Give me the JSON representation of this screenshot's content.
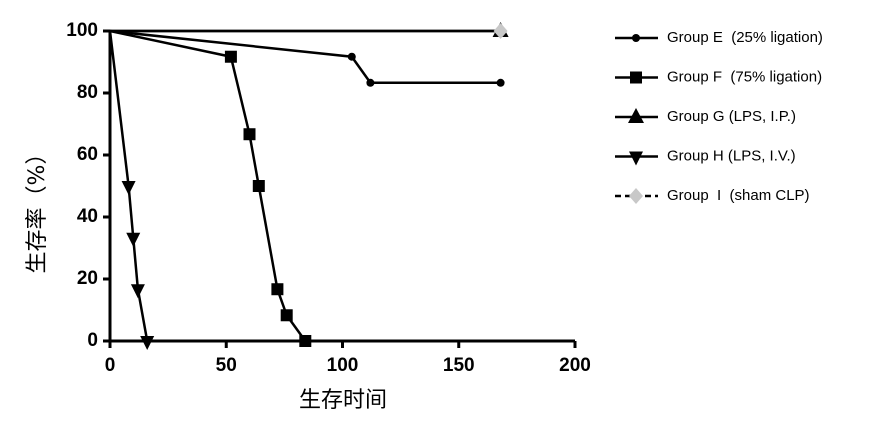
{
  "chart_data": {
    "type": "line",
    "xlabel": "生存时间",
    "ylabel": "生存率（%）",
    "xlim": [
      0,
      200
    ],
    "xticks": [
      0,
      50,
      100,
      150,
      200
    ],
    "ylim": [
      0,
      100
    ],
    "yticks": [
      0,
      20,
      40,
      60,
      80,
      100
    ],
    "series": [
      {
        "name": "Group E  (25% ligation)",
        "color": "#000000",
        "marker": "circle",
        "x": [
          0,
          104,
          112,
          168
        ],
        "values": [
          100,
          91.7,
          83.3,
          83.3
        ]
      },
      {
        "name": "Group F  (75% ligation)",
        "color": "#000000",
        "marker": "square",
        "x": [
          0,
          52,
          60,
          64,
          72,
          76,
          84
        ],
        "values": [
          100,
          91.7,
          66.7,
          50,
          16.7,
          8.3,
          0
        ]
      },
      {
        "name": "Group G (LPS, I.P.)",
        "color": "#000000",
        "marker": "triangle-up",
        "x": [
          0,
          168
        ],
        "values": [
          100,
          100
        ]
      },
      {
        "name": "Group H (LPS, I.V.)",
        "color": "#000000",
        "marker": "triangle-down",
        "x": [
          0,
          8,
          10,
          12,
          16
        ],
        "values": [
          100,
          50,
          33.3,
          16.7,
          0
        ]
      },
      {
        "name": "Group  I  (sham CLP)",
        "color": "#c8c8c8",
        "marker": "diamond",
        "x": [
          0,
          168
        ],
        "values": [
          100,
          100
        ]
      }
    ]
  }
}
